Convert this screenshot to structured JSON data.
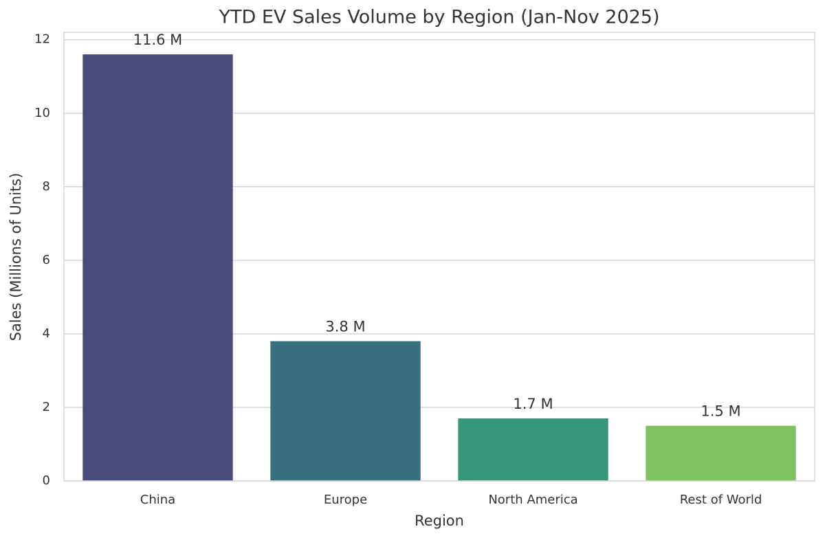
{
  "chart_data": {
    "type": "bar",
    "title": "YTD EV Sales Volume by Region (Jan-Nov 2025)",
    "xlabel": "Region",
    "ylabel": "Sales (Millions of Units)",
    "categories": [
      "China",
      "Europe",
      "North America",
      "Rest of World"
    ],
    "values": [
      11.6,
      3.8,
      1.7,
      1.5
    ],
    "value_labels": [
      "11.6 M",
      "3.8 M",
      "1.7 M",
      "1.5 M"
    ],
    "colors": [
      "#4b4b7b",
      "#377180",
      "#35977a",
      "#80c162"
    ],
    "ylim": [
      0,
      12.2
    ],
    "yticks": [
      0,
      2,
      4,
      6,
      8,
      10,
      12
    ],
    "grid": true
  }
}
